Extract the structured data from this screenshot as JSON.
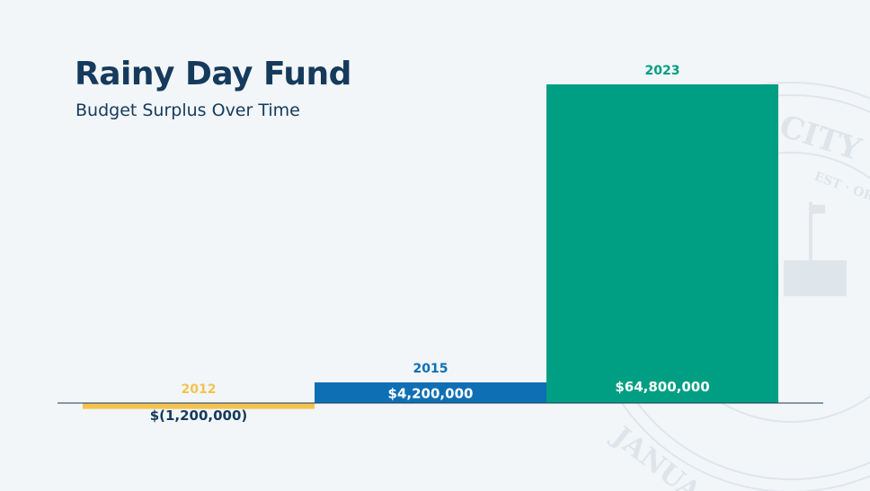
{
  "chart_data": {
    "type": "bar",
    "title": "Rainy Day Fund",
    "subtitle": "Budget Surplus Over Time",
    "categories": [
      "2012",
      "2015",
      "2023"
    ],
    "values": [
      -1200000,
      4200000,
      64800000
    ],
    "value_labels": [
      "$(1,200,000)",
      "$4,200,000",
      "$64,800,000"
    ],
    "colors": [
      "#f3c34f",
      "#0f6fb5",
      "#009e82"
    ],
    "category_label_colors": [
      "#f3c34f",
      "#0f6fb5",
      "#009e82"
    ],
    "value_label_colors": [
      "#163a5c",
      "#ffffff",
      "#ffffff"
    ],
    "baseline_color": "#163a5c",
    "grid": false,
    "legend": "none"
  },
  "seal": {
    "text_top": "CITY OF",
    "text_mid": "EST · OR",
    "text_bottom": "JANUA"
  }
}
